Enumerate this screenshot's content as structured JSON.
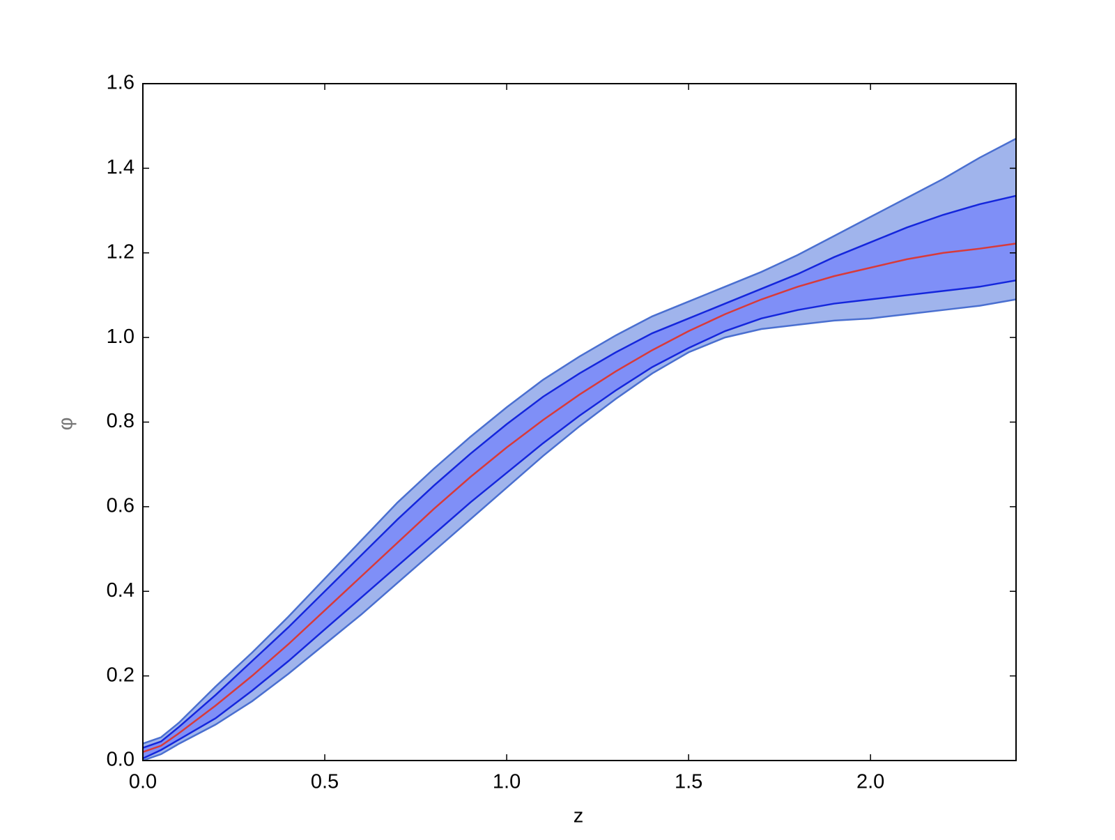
{
  "chart_data": {
    "type": "band-line",
    "x_label": "z",
    "y_label": "φ",
    "x": [
      0,
      0.05,
      0.1,
      0.2,
      0.3,
      0.4,
      0.5,
      0.6,
      0.7,
      0.8,
      0.9,
      1.0,
      1.1,
      1.2,
      1.3,
      1.4,
      1.5,
      1.6,
      1.7,
      1.8,
      1.9,
      2.0,
      2.1,
      2.2,
      2.3,
      2.4
    ],
    "bands": [
      {
        "fill": "#a0b4ec",
        "edge": "#4a6fd0",
        "lower": [
          0,
          0.015,
          0.04,
          0.085,
          0.14,
          0.205,
          0.275,
          0.345,
          0.42,
          0.495,
          0.57,
          0.645,
          0.72,
          0.79,
          0.855,
          0.915,
          0.965,
          1.0,
          1.02,
          1.03,
          1.04,
          1.045,
          1.055,
          1.065,
          1.075,
          1.09
        ],
        "upper": [
          0.04,
          0.055,
          0.09,
          0.175,
          0.255,
          0.34,
          0.43,
          0.52,
          0.61,
          0.69,
          0.765,
          0.835,
          0.9,
          0.955,
          1.005,
          1.05,
          1.085,
          1.12,
          1.155,
          1.195,
          1.24,
          1.285,
          1.33,
          1.375,
          1.425,
          1.47
        ]
      },
      {
        "fill": "#7f8ff7",
        "edge": "#1426dc",
        "lower": [
          0.005,
          0.025,
          0.05,
          0.1,
          0.165,
          0.235,
          0.31,
          0.385,
          0.46,
          0.535,
          0.61,
          0.68,
          0.75,
          0.815,
          0.875,
          0.93,
          0.975,
          1.015,
          1.045,
          1.065,
          1.08,
          1.09,
          1.1,
          1.11,
          1.12,
          1.135
        ],
        "upper": [
          0.03,
          0.045,
          0.08,
          0.155,
          0.235,
          0.315,
          0.4,
          0.485,
          0.57,
          0.65,
          0.725,
          0.795,
          0.86,
          0.915,
          0.965,
          1.01,
          1.045,
          1.08,
          1.115,
          1.15,
          1.19,
          1.225,
          1.26,
          1.29,
          1.315,
          1.335
        ]
      }
    ],
    "series": [
      {
        "color": "#d83a3a",
        "values": [
          0.02,
          0.035,
          0.065,
          0.13,
          0.2,
          0.275,
          0.355,
          0.435,
          0.515,
          0.595,
          0.67,
          0.74,
          0.805,
          0.865,
          0.92,
          0.97,
          1.015,
          1.055,
          1.09,
          1.12,
          1.145,
          1.165,
          1.185,
          1.2,
          1.21,
          1.222
        ]
      }
    ],
    "xlim": [
      0,
      2.4
    ],
    "xticks": [
      {
        "value": 0,
        "label": "0.0"
      },
      {
        "value": 0.5,
        "label": "0.5"
      },
      {
        "value": 1,
        "label": "1.0"
      },
      {
        "value": 1.5,
        "label": "1.5"
      },
      {
        "value": 2,
        "label": "2.0"
      }
    ],
    "ylim": [
      0,
      1.6
    ],
    "yticks": [
      {
        "value": 0,
        "label": "0.0"
      },
      {
        "value": 0.2,
        "label": "0.2"
      },
      {
        "value": 0.4,
        "label": "0.4"
      },
      {
        "value": 0.6,
        "label": "0.6"
      },
      {
        "value": 0.8,
        "label": "0.8"
      },
      {
        "value": 1,
        "label": "1.0"
      },
      {
        "value": 1.2,
        "label": "1.2"
      },
      {
        "value": 1.4,
        "label": "1.4"
      },
      {
        "value": 1.6,
        "label": "1.6"
      }
    ]
  }
}
